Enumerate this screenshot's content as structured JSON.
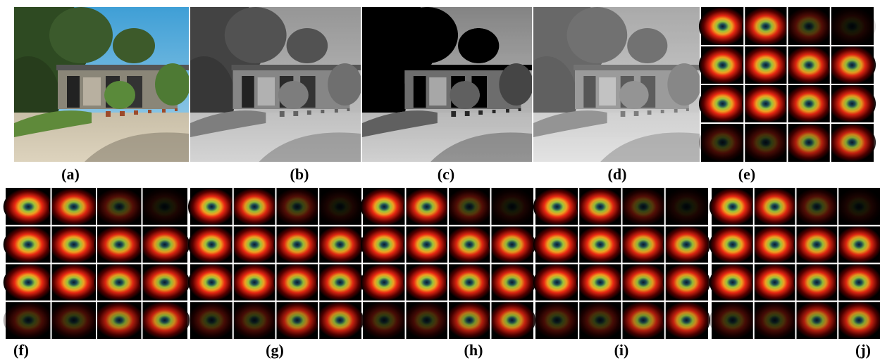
{
  "figure": {
    "labels": [
      "(a)",
      "(b)",
      "(c)",
      "(d)",
      "(e)",
      "(f)",
      "(g)",
      "(h)",
      "(i)",
      "(j)"
    ]
  }
}
